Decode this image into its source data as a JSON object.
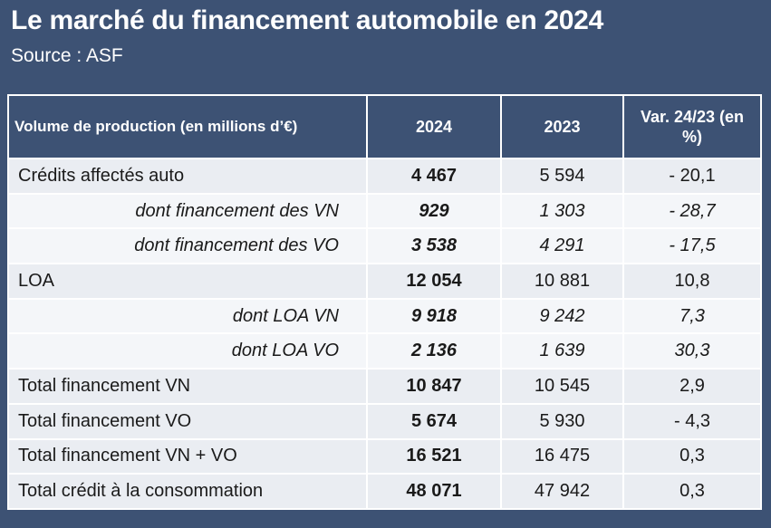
{
  "title": "Le marché du financement automobile en 2024",
  "source": "Source : ASF",
  "table": {
    "headers": {
      "label": "Volume de production  (en millions d’€)",
      "col1": "2024",
      "col2": "2023",
      "col3": "Var. 24/23 (en %)"
    },
    "rows": [
      {
        "label": "Crédits affectés auto",
        "v2024": "4 467",
        "v2023": "5 594",
        "var": "- 20,1"
      },
      {
        "label": "dont financement des VN",
        "v2024": "929",
        "v2023": "1 303",
        "var": "- 28,7"
      },
      {
        "label": "dont financement des VO",
        "v2024": "3 538",
        "v2023": "4 291",
        "var": "- 17,5"
      },
      {
        "label": "LOA",
        "v2024": "12 054",
        "v2023": "10 881",
        "var": "10,8"
      },
      {
        "label": "dont LOA VN",
        "v2024": "9 918",
        "v2023": "9 242",
        "var": "7,3"
      },
      {
        "label": "dont LOA VO",
        "v2024": "2 136",
        "v2023": "1 639",
        "var": "30,3"
      },
      {
        "label": "Total financement VN",
        "v2024": "10 847",
        "v2023": "10 545",
        "var": "2,9"
      },
      {
        "label": "Total financement VO",
        "v2024": "5 674",
        "v2023": "5 930",
        "var": "- 4,3"
      },
      {
        "label": "Total financement VN + VO",
        "v2024": "16 521",
        "v2023": "16 475",
        "var": "0,3"
      },
      {
        "label": "Total crédit à la consommation",
        "v2024": "48 071",
        "v2023": "47 942",
        "var": "0,3"
      }
    ]
  }
}
